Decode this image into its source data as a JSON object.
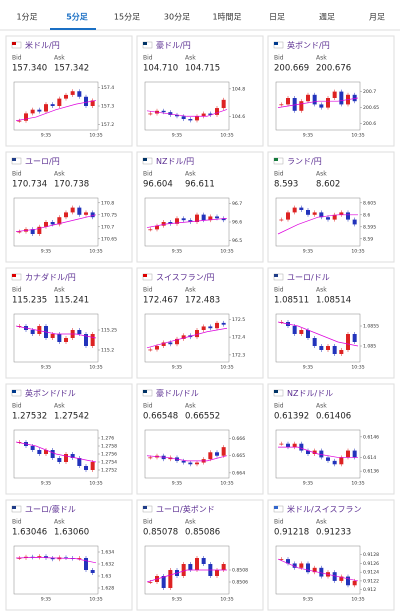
{
  "tabs": [
    "1分足",
    "5分足",
    "15分足",
    "30分足",
    "1時間足",
    "日足",
    "週足",
    "月足"
  ],
  "active_tab": 1,
  "bid_label": "Bid",
  "ask_label": "Ask",
  "x_labels": [
    "9:35",
    "10:35"
  ],
  "cards": [
    {
      "name": "米ドル/円",
      "bid": "157.340",
      "ask": "157.342",
      "ylim": [
        157.17,
        157.43
      ],
      "yticks": [
        157.4,
        157.3,
        157.2
      ],
      "closes": [
        157.22,
        157.26,
        157.28,
        157.27,
        157.31,
        157.3,
        157.34,
        157.36,
        157.38,
        157.35,
        157.3,
        157.33
      ],
      "ma": [
        157.22,
        157.24,
        157.28,
        157.31,
        157.33
      ]
    },
    {
      "name": "豪ドル/円",
      "bid": "104.710",
      "ask": "104.715",
      "ylim": [
        104.5,
        104.85
      ],
      "yticks": [
        104.8,
        104.6
      ],
      "closes": [
        104.62,
        104.64,
        104.63,
        104.61,
        104.6,
        104.58,
        104.57,
        104.6,
        104.62,
        104.61,
        104.66,
        104.72
      ],
      "ma": [
        104.64,
        104.62,
        104.6,
        104.6,
        104.65
      ]
    },
    {
      "name": "英ポンド/円",
      "bid": "200.669",
      "ask": "200.676",
      "ylim": [
        200.58,
        200.73
      ],
      "yticks": [
        200.7,
        200.65,
        200.6
      ],
      "closes": [
        200.66,
        200.68,
        200.64,
        200.67,
        200.69,
        200.66,
        200.65,
        200.68,
        200.7,
        200.66,
        200.69,
        200.67
      ],
      "ma": [
        200.65,
        200.66,
        200.67,
        200.67,
        200.68
      ]
    },
    {
      "name": "ユーロ/円",
      "bid": "170.734",
      "ask": "170.738",
      "ylim": [
        170.62,
        170.82
      ],
      "yticks": [
        170.8,
        170.75,
        170.7,
        170.65
      ],
      "closes": [
        170.68,
        170.69,
        170.67,
        170.7,
        170.72,
        170.71,
        170.74,
        170.76,
        170.78,
        170.75,
        170.76,
        170.74
      ],
      "ma": [
        170.68,
        170.69,
        170.71,
        170.73,
        170.75
      ]
    },
    {
      "name": "NZドル/円",
      "bid": "96.604",
      "ask": "96.611",
      "ylim": [
        96.47,
        96.73
      ],
      "yticks": [
        96.7,
        96.6,
        96.5
      ],
      "closes": [
        96.56,
        96.58,
        96.6,
        96.59,
        96.62,
        96.61,
        96.6,
        96.64,
        96.61,
        96.63,
        96.62,
        96.61
      ],
      "ma": [
        96.57,
        96.59,
        96.6,
        96.61,
        96.62
      ]
    },
    {
      "name": "ランド/円",
      "bid": "8.593",
      "ask": "8.602",
      "ylim": [
        8.587,
        8.607
      ],
      "yticks": [
        8.605,
        8.6,
        8.595,
        8.59
      ],
      "closes": [
        8.598,
        8.601,
        8.603,
        8.602,
        8.6,
        8.601,
        8.599,
        8.598,
        8.6,
        8.601,
        8.598,
        8.596
      ],
      "ma": [
        8.592,
        8.596,
        8.599,
        8.6,
        8.6
      ]
    },
    {
      "name": "カナダドル/円",
      "bid": "115.235",
      "ask": "115.241",
      "ylim": [
        115.17,
        115.29
      ],
      "yticks": [
        115.25,
        115.2
      ],
      "closes": [
        115.26,
        115.25,
        115.24,
        115.26,
        115.23,
        115.24,
        115.22,
        115.23,
        115.25,
        115.24,
        115.21,
        115.24
      ],
      "ma": [
        115.26,
        115.25,
        115.24,
        115.24,
        115.23
      ]
    },
    {
      "name": "スイスフラン/円",
      "bid": "172.467",
      "ask": "172.483",
      "ylim": [
        172.26,
        172.53
      ],
      "yticks": [
        172.5,
        172.4,
        172.3
      ],
      "closes": [
        172.33,
        172.35,
        172.37,
        172.36,
        172.39,
        172.41,
        172.4,
        172.44,
        172.46,
        172.45,
        172.48,
        172.47
      ],
      "ma": [
        172.34,
        172.37,
        172.4,
        172.43,
        172.45
      ]
    },
    {
      "name": "ユーロ/ドル",
      "bid": "1.08511",
      "ask": "1.08514",
      "ylim": [
        1.0846,
        1.0858
      ],
      "yticks": [
        1.0855,
        1.085
      ],
      "closes": [
        1.0856,
        1.0855,
        1.0853,
        1.0854,
        1.0852,
        1.085,
        1.0849,
        1.085,
        1.0848,
        1.0849,
        1.0853,
        1.0851
      ],
      "ma": [
        1.0856,
        1.0855,
        1.0853,
        1.0851,
        1.085
      ]
    },
    {
      "name": "英ポンド/ドル",
      "bid": "1.27532",
      "ask": "1.27542",
      "ylim": [
        1.275,
        1.2762
      ],
      "yticks": [
        1.276,
        1.2758,
        1.2756,
        1.2754,
        1.2752
      ],
      "closes": [
        1.2759,
        1.2758,
        1.2757,
        1.2756,
        1.2757,
        1.2755,
        1.2754,
        1.2756,
        1.2755,
        1.2753,
        1.2752,
        1.2754
      ],
      "ma": [
        1.2759,
        1.2758,
        1.2756,
        1.2755,
        1.2754
      ]
    },
    {
      "name": "豪ドル/ドル",
      "bid": "0.66548",
      "ask": "0.66552",
      "ylim": [
        0.6637,
        0.6665
      ],
      "yticks": [
        0.666,
        0.665,
        0.664
      ],
      "closes": [
        0.6649,
        0.665,
        0.6648,
        0.6649,
        0.6647,
        0.6646,
        0.6645,
        0.6646,
        0.6648,
        0.6652,
        0.665,
        0.6655
      ],
      "ma": [
        0.665,
        0.6649,
        0.6647,
        0.6647,
        0.665
      ]
    },
    {
      "name": "NZドル/ドル",
      "bid": "0.61392",
      "ask": "0.61406",
      "ylim": [
        0.6134,
        0.6148
      ],
      "yticks": [
        0.6146,
        0.614,
        0.6136
      ],
      "closes": [
        0.6144,
        0.6143,
        0.6144,
        0.6142,
        0.6141,
        0.6142,
        0.614,
        0.6139,
        0.6138,
        0.614,
        0.6142,
        0.614
      ],
      "ma": [
        0.6143,
        0.6143,
        0.6141,
        0.614,
        0.614
      ]
    },
    {
      "name": "ユーロ/豪ドル",
      "bid": "1.63046",
      "ask": "1.63060",
      "ylim": [
        1.627,
        1.635
      ],
      "yticks": [
        1.634,
        1.632,
        1.63,
        1.628
      ],
      "closes": [
        1.633,
        1.6332,
        1.6331,
        1.6333,
        1.633,
        1.6328,
        1.6331,
        1.633,
        1.6329,
        1.633,
        1.631,
        1.6305
      ],
      "ma": [
        1.633,
        1.6331,
        1.633,
        1.6329,
        1.6322
      ]
    },
    {
      "name": "ユーロ/英ポンド",
      "bid": "0.85078",
      "ask": "0.85086",
      "ylim": [
        0.8504,
        0.8512
      ],
      "yticks": [
        0.8508,
        0.8506
      ],
      "closes": [
        0.8506,
        0.8507,
        0.8505,
        0.8508,
        0.8507,
        0.8509,
        0.8508,
        0.851,
        0.8509,
        0.8507,
        0.8508,
        0.8509
      ],
      "ma": [
        0.8506,
        0.8507,
        0.8508,
        0.8508,
        0.8508
      ]
    },
    {
      "name": "米ドル/スイスフラン",
      "bid": "0.91218",
      "ask": "0.91233",
      "ylim": [
        0.9119,
        0.913
      ],
      "yticks": [
        0.9128,
        0.9126,
        0.9124,
        0.9122,
        0.912
      ],
      "closes": [
        0.9127,
        0.9126,
        0.9125,
        0.9126,
        0.9124,
        0.9125,
        0.9123,
        0.9124,
        0.9122,
        0.9123,
        0.9121,
        0.9122
      ],
      "ma": [
        0.9127,
        0.9125,
        0.9124,
        0.9123,
        0.9122
      ]
    }
  ]
}
